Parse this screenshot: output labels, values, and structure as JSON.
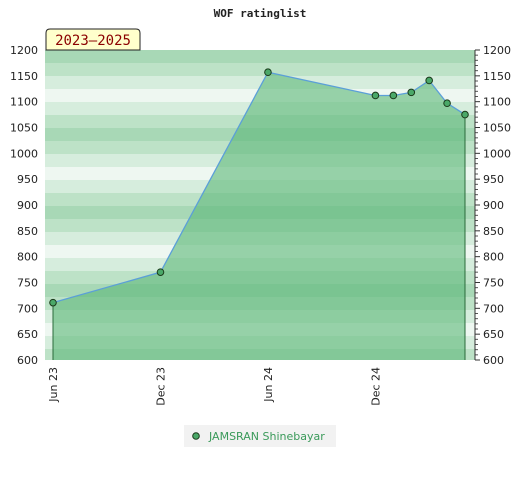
{
  "chart_data": {
    "type": "area",
    "title": "WOF ratinglist",
    "period_label": "2023–2025",
    "xlabel": "",
    "ylabel": "",
    "x_ticks": [
      "Jun 23",
      "Dec 23",
      "Jun 24",
      "Dec 24"
    ],
    "x_tick_positions": [
      "2023-06",
      "2023-12",
      "2024-06",
      "2024-12"
    ],
    "x_range": [
      "2023-06",
      "2025-05"
    ],
    "ylim": [
      600,
      1200
    ],
    "y_ticks": [
      600,
      650,
      700,
      750,
      800,
      850,
      900,
      950,
      1000,
      1050,
      1100,
      1150,
      1200
    ],
    "grid": false,
    "legend_position": "bottom-center",
    "series": [
      {
        "name": "JAMSRAN Shinebayar",
        "x": [
          "2023-06",
          "2023-12",
          "2024-06",
          "2024-12",
          "2025-01",
          "2025-02",
          "2025-03",
          "2025-04",
          "2025-05"
        ],
        "values": [
          711,
          770,
          1157,
          1112,
          1112,
          1118,
          1141,
          1097,
          1075
        ]
      }
    ]
  },
  "colors": {
    "area_fill": "#5cb878",
    "line": "#5b9fd8",
    "marker": "#4aa868",
    "period_box": "#ffffcc"
  }
}
